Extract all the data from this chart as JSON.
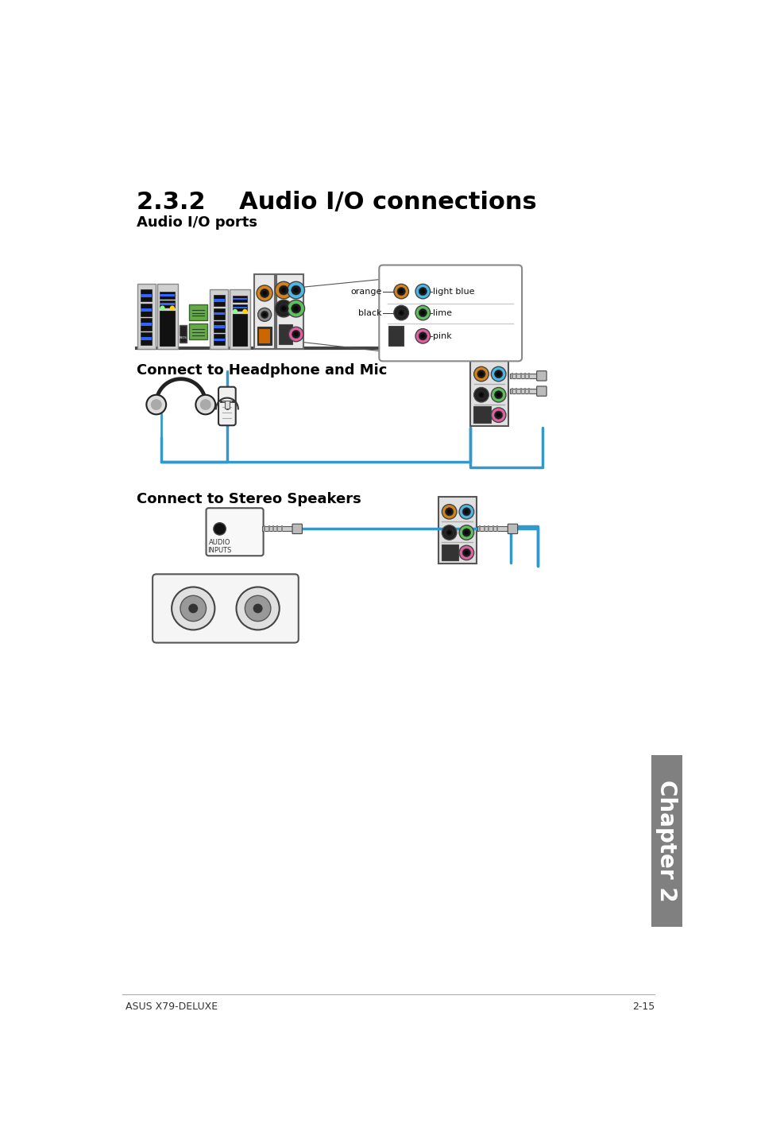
{
  "title": "2.3.2    Audio I/O connections",
  "subtitle1": "Audio I/O ports",
  "subtitle2": "Connect to Headphone and Mic",
  "subtitle3": "Connect to Stereo Speakers",
  "footer_left": "ASUS X79-DELUXE",
  "footer_right": "2-15",
  "bg_color": "#ffffff",
  "text_color": "#000000",
  "chapter_label": "Chapter 2",
  "chapter_bg": "#808080",
  "col_orange": "#D4821A",
  "col_lightblue": "#4DB8E8",
  "col_black": "#222222",
  "col_lime": "#5DC05D",
  "col_pink": "#E060A0",
  "col_yellow": "#FFD700",
  "label_orange": "orange",
  "label_light_blue": "light blue",
  "label_black": "black",
  "label_lime": "lime",
  "label_pink": "pink",
  "cable_color": "#3399CC",
  "line_color": "#333333",
  "audio_inputs_label": "AUDIO\nINPUTS"
}
